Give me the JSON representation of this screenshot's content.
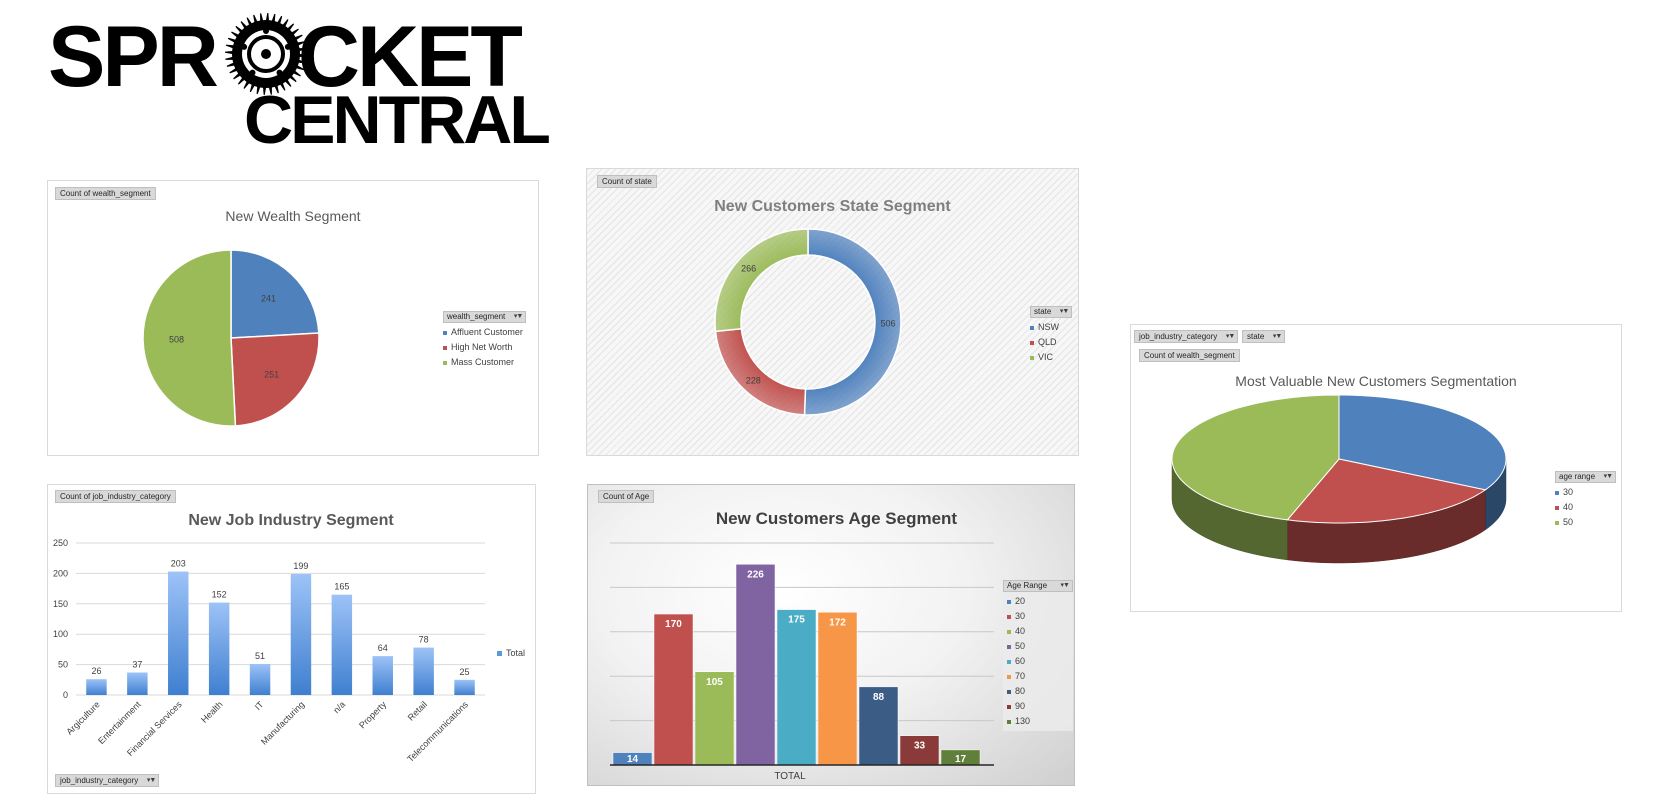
{
  "logo": {
    "line1_left": "SPR",
    "line1_right": "CKET",
    "line2": "CENTRAL"
  },
  "colors": {
    "blue": "#4f81bd",
    "red": "#c0504d",
    "green": "#9bbb59",
    "purple": "#8064a2",
    "teal": "#4bacc6",
    "orange": "#f79646",
    "navy": "#3b5d85",
    "maroon": "#8b3a3a",
    "olive": "#5f7f3a",
    "bar_blue": "#5b9bd5"
  },
  "wealth_panel": {
    "field_button": "Count of wealth_segment",
    "legend_field": "wealth_segment",
    "chart_data": {
      "type": "pie",
      "title": "New Wealth Segment",
      "labels": [
        "Affluent Customer",
        "High Net Worth",
        "Mass Customer"
      ],
      "values": [
        241,
        251,
        508
      ],
      "colors": [
        "#4f81bd",
        "#c0504d",
        "#9bbb59"
      ]
    }
  },
  "state_panel": {
    "field_button": "Count of state",
    "legend_field": "state",
    "chart_data": {
      "type": "pie",
      "title": "New Customers State Segment",
      "labels": [
        "NSW",
        "QLD",
        "VIC"
      ],
      "values": [
        506,
        228,
        266
      ],
      "colors": [
        "#4f81bd",
        "#c0504d",
        "#9bbb59"
      ]
    }
  },
  "valuable_panel": {
    "filter_buttons": [
      "job_industry_category",
      "state"
    ],
    "field_button": "Count of wealth_segment",
    "legend_field": "age range",
    "chart_data": {
      "type": "pie",
      "title": "Most Valuable New Customers Segmentation",
      "labels": [
        "30",
        "40",
        "50"
      ],
      "values": [
        33,
        22,
        45
      ],
      "colors": [
        "#4f81bd",
        "#c0504d",
        "#9bbb59"
      ]
    }
  },
  "industry_panel": {
    "field_button": "Count of job_industry_category",
    "axis_filter": "job_industry_category",
    "chart_data": {
      "type": "bar",
      "title": "New Job Industry Segment",
      "categories": [
        "Argiculture",
        "Entertainment",
        "Financial Services",
        "Health",
        "IT",
        "Manufacturing",
        "n/a",
        "Property",
        "Retail",
        "Telecommunications"
      ],
      "series": [
        {
          "name": "Total",
          "values": [
            26,
            37,
            203,
            152,
            51,
            199,
            165,
            64,
            78,
            25
          ]
        }
      ],
      "ylim": [
        0,
        250
      ],
      "yticks": [
        0,
        50,
        100,
        150,
        200,
        250
      ],
      "grid": true,
      "legend": "right"
    }
  },
  "age_panel": {
    "field_button": "Count of Age",
    "legend_field": "Age Range",
    "chart_data": {
      "type": "bar",
      "title": "New Customers Age Segment",
      "categories": [
        "TOTAL"
      ],
      "series": [
        {
          "name": "20",
          "values": [
            14
          ]
        },
        {
          "name": "30",
          "values": [
            170
          ]
        },
        {
          "name": "40",
          "values": [
            105
          ]
        },
        {
          "name": "50",
          "values": [
            226
          ]
        },
        {
          "name": "60",
          "values": [
            175
          ]
        },
        {
          "name": "70",
          "values": [
            172
          ]
        },
        {
          "name": "80",
          "values": [
            88
          ]
        },
        {
          "name": "90",
          "values": [
            33
          ]
        },
        {
          "name": "130",
          "values": [
            17
          ]
        }
      ],
      "colors": [
        "#4f81bd",
        "#c0504d",
        "#9bbb59",
        "#8064a2",
        "#4bacc6",
        "#f79646",
        "#3b5d85",
        "#8b3a3a",
        "#5f7f3a"
      ],
      "ylim": [
        0,
        250
      ],
      "grid": true,
      "legend": "right"
    }
  }
}
